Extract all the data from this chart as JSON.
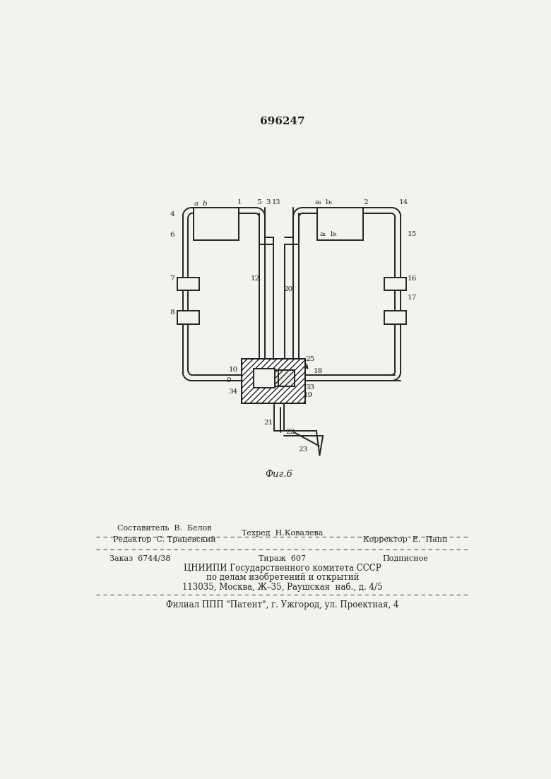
{
  "patent_number": "696247",
  "background_color": "#f2f2ee",
  "line_color": "#222222",
  "footer": {
    "line1_left": "Редактор  С. Трацевский",
    "line1_center_top": "Составитель  В.  Белов",
    "line1_center": "Техред  Н.Ковалева",
    "line1_right": "Корректор  Е.  Папп",
    "line2_left": "Заказ  6744/38",
    "line2_center": "Тираж  607",
    "line2_right": "Подписное",
    "line3": "ЦНИИПИ Государственного комитета СССР",
    "line4": "по делам изобретений и открытий",
    "line5": "113035, Москва, Ж–35, Раушская  наб., д. 4/5",
    "line6": "Филиал ППП \"Патент\", г. Ужгород, ул. Проектная, 4"
  }
}
